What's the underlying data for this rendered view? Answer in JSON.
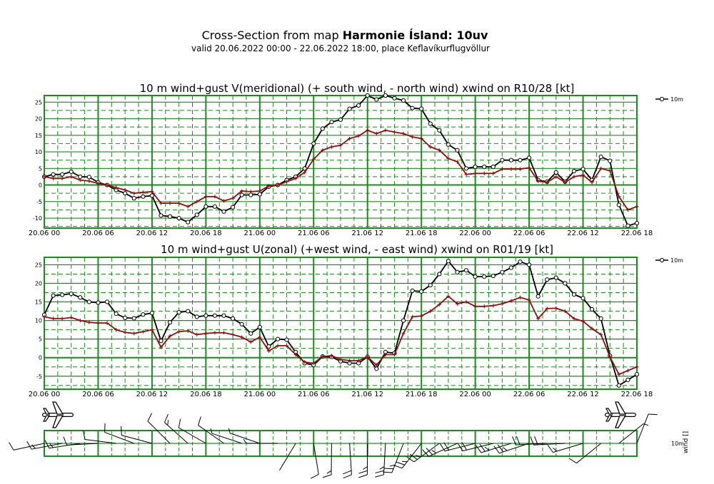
{
  "header": {
    "title_prefix": "Cross-Section from map ",
    "title_bold": "Harmonie Ísland: 10uv",
    "subtitle": "valid 20.06.2022 00:00 - 22.06.2022 18:00, place Keflavíkurflugvöllur"
  },
  "colors": {
    "grid": "#1c8a1c",
    "wind": "#000000",
    "gust_line": "#8b1010"
  },
  "legend": {
    "label": "10m"
  },
  "side_label": {
    "level": "10m",
    "axis": "wind []"
  },
  "chart_data": [
    {
      "type": "line",
      "title": "10 m wind+gust V(meridional) (+ south wind, - north wind) xwind on R10/28 [kt]",
      "ylim": [
        -13,
        27
      ],
      "yticks": [
        -10,
        -5,
        0,
        5,
        10,
        15,
        20,
        25
      ],
      "ytick_labels": [
        "-10",
        "-5",
        "0",
        "5",
        "10",
        "15",
        "20",
        "25"
      ],
      "xlim": [
        0,
        66
      ],
      "xtick_hours": [
        0,
        6,
        12,
        18,
        24,
        30,
        36,
        42,
        48,
        54,
        60,
        66
      ],
      "xtick_labels": [
        "20.06 00",
        "20.06 06",
        "20.06 12",
        "20.06 18",
        "21.06 00",
        "21.06 06",
        "21.06 12",
        "21.06 18",
        "22.06 00",
        "22.06 06",
        "22.06 12",
        "22.06 18"
      ],
      "series": [
        {
          "name": "10m",
          "role": "wind",
          "x": [
            0,
            1,
            2,
            3,
            4,
            5,
            6,
            7,
            8,
            9,
            10,
            11,
            12,
            13,
            14,
            15,
            16,
            17,
            18,
            19,
            20,
            21,
            22,
            23,
            24,
            25,
            26,
            27,
            28,
            29,
            30,
            31,
            32,
            33,
            34,
            35,
            36,
            37,
            38,
            39,
            40,
            41,
            42,
            43,
            44,
            45,
            46,
            47,
            48,
            49,
            50,
            51,
            52,
            53,
            54,
            55,
            56,
            57,
            58,
            59,
            60,
            61,
            62,
            63,
            64,
            65,
            66
          ],
          "values": [
            2.5,
            3.2,
            3.2,
            4,
            2.5,
            2.4,
            0.8,
            0,
            -1.5,
            -2.5,
            -4,
            -3.5,
            -3.2,
            -9.2,
            -9.5,
            -10,
            -11.2,
            -9,
            -6.5,
            -6.5,
            -8,
            -6.7,
            -3,
            -3,
            -2.8,
            -0.5,
            0,
            1.5,
            2.5,
            5,
            12.5,
            17,
            19,
            19.7,
            23,
            24,
            27,
            25.8,
            27,
            26.2,
            25.5,
            23.2,
            23,
            18.5,
            16.5,
            12.2,
            10.5,
            5,
            5.5,
            5.5,
            5.5,
            7.5,
            7.5,
            7.5,
            8.2,
            1.5,
            1,
            3.8,
            1,
            4.2,
            4.8,
            1.5,
            8.5,
            7.3,
            -6,
            -12.3,
            -11.5
          ]
        },
        {
          "name": "gust",
          "role": "gust",
          "x": [
            0,
            1,
            2,
            3,
            4,
            5,
            6,
            7,
            8,
            9,
            10,
            11,
            12,
            13,
            14,
            15,
            16,
            17,
            18,
            19,
            20,
            21,
            22,
            23,
            24,
            25,
            26,
            27,
            28,
            29,
            30,
            31,
            32,
            33,
            34,
            35,
            36,
            37,
            38,
            39,
            40,
            41,
            42,
            43,
            44,
            45,
            46,
            47,
            48,
            49,
            50,
            51,
            52,
            53,
            54,
            55,
            56,
            57,
            58,
            59,
            60,
            61,
            62,
            63,
            64,
            65,
            66
          ],
          "values": [
            2.5,
            2,
            2,
            2.5,
            1.5,
            1.2,
            0.5,
            0,
            -0.8,
            -1.5,
            -2.5,
            -2.2,
            -2,
            -5.5,
            -5.5,
            -5.5,
            -6.5,
            -5,
            -3.5,
            -3.5,
            -4.8,
            -4,
            -1.8,
            -2,
            -1.8,
            -0.3,
            0,
            1,
            2,
            3.8,
            7.8,
            10.5,
            11.5,
            12,
            14,
            14.8,
            16.5,
            15.5,
            16.5,
            16,
            15.5,
            14.5,
            14,
            11.5,
            10.5,
            8,
            7,
            3.2,
            3.5,
            3.5,
            3.5,
            4.8,
            4.8,
            4.8,
            5.2,
            1.2,
            0.8,
            2.5,
            0.8,
            2.5,
            3,
            0.8,
            5,
            4.3,
            -3.5,
            -7.5,
            -6.5
          ]
        }
      ]
    },
    {
      "type": "line",
      "title": "10 m wind+gust U(zonal) (+west wind, - east wind) xwind on R01/19 [kt]",
      "ylim": [
        -8.5,
        27
      ],
      "yticks": [
        -5,
        0,
        5,
        10,
        15,
        20,
        25
      ],
      "ytick_labels": [
        "-5",
        "0",
        "5",
        "10",
        "15",
        "20",
        "25"
      ],
      "xlim": [
        0,
        66
      ],
      "xtick_hours": [
        0,
        6,
        12,
        18,
        24,
        30,
        36,
        42,
        48,
        54,
        60,
        66
      ],
      "xtick_labels": [
        "20.06 00",
        "20.06 06",
        "20.06 12",
        "20.06 18",
        "21.06 00",
        "21.06 06",
        "21.06 12",
        "21.06 18",
        "22.06 00",
        "22.06 06",
        "22.06 12",
        "22.06 18"
      ],
      "series": [
        {
          "name": "10m",
          "role": "wind",
          "x": [
            0,
            1,
            2,
            3,
            4,
            5,
            6,
            7,
            8,
            9,
            10,
            11,
            12,
            13,
            14,
            15,
            16,
            17,
            18,
            19,
            20,
            21,
            22,
            23,
            24,
            25,
            26,
            27,
            28,
            29,
            30,
            31,
            32,
            33,
            34,
            35,
            36,
            37,
            38,
            39,
            40,
            41,
            42,
            43,
            44,
            45,
            46,
            47,
            48,
            49,
            50,
            51,
            52,
            53,
            54,
            55,
            56,
            57,
            58,
            59,
            60,
            61,
            62,
            63,
            64,
            65,
            66
          ],
          "values": [
            11.5,
            16.7,
            16.9,
            17.2,
            16.2,
            15,
            14.8,
            15,
            11.8,
            10.7,
            10.6,
            11.6,
            12,
            4.5,
            9.5,
            12.2,
            12.5,
            11,
            11.3,
            11.3,
            11.3,
            10.5,
            9,
            6.5,
            8.2,
            3,
            5,
            4.8,
            1.5,
            -1.5,
            -2,
            0.3,
            0.2,
            -1,
            -1.5,
            -1.5,
            0.2,
            -3,
            1.5,
            1.2,
            10,
            18,
            17.8,
            19.5,
            22.5,
            26,
            23,
            23.5,
            21.8,
            21.8,
            22,
            23,
            24.2,
            25.8,
            25,
            16.5,
            21,
            21.5,
            20,
            17,
            16,
            13,
            10.5,
            0.5,
            -7.5,
            -6,
            -4.5
          ]
        },
        {
          "name": "gust",
          "role": "gust",
          "x": [
            0,
            1,
            2,
            3,
            4,
            5,
            6,
            7,
            8,
            9,
            10,
            11,
            12,
            13,
            14,
            15,
            16,
            17,
            18,
            19,
            20,
            21,
            22,
            23,
            24,
            25,
            26,
            27,
            28,
            29,
            30,
            31,
            32,
            33,
            34,
            35,
            36,
            37,
            38,
            39,
            40,
            41,
            42,
            43,
            44,
            45,
            46,
            47,
            48,
            49,
            50,
            51,
            52,
            53,
            54,
            55,
            56,
            57,
            58,
            59,
            60,
            61,
            62,
            63,
            64,
            65,
            66
          ],
          "values": [
            11,
            10.5,
            10.5,
            10.8,
            10,
            9.5,
            9.3,
            9.3,
            7.5,
            6.8,
            6.5,
            7,
            7.5,
            2.8,
            5.8,
            7,
            7.2,
            6.2,
            6.5,
            6.7,
            6.7,
            6.2,
            5.5,
            4.2,
            5.5,
            1.8,
            3.2,
            3.2,
            0.8,
            -1.2,
            -1.5,
            0.3,
            0.5,
            -0.5,
            -0.8,
            -0.8,
            0.2,
            -2,
            0.8,
            0.8,
            6.5,
            11,
            11.2,
            12.5,
            14.3,
            16.5,
            14.5,
            15,
            13.8,
            13.8,
            14,
            14.5,
            15.3,
            16.2,
            15.5,
            10.5,
            13.2,
            13.3,
            12.5,
            10.5,
            9.8,
            7.8,
            6.2,
            0.2,
            -4.5,
            -3.5,
            -2.5
          ]
        }
      ]
    }
  ]
}
